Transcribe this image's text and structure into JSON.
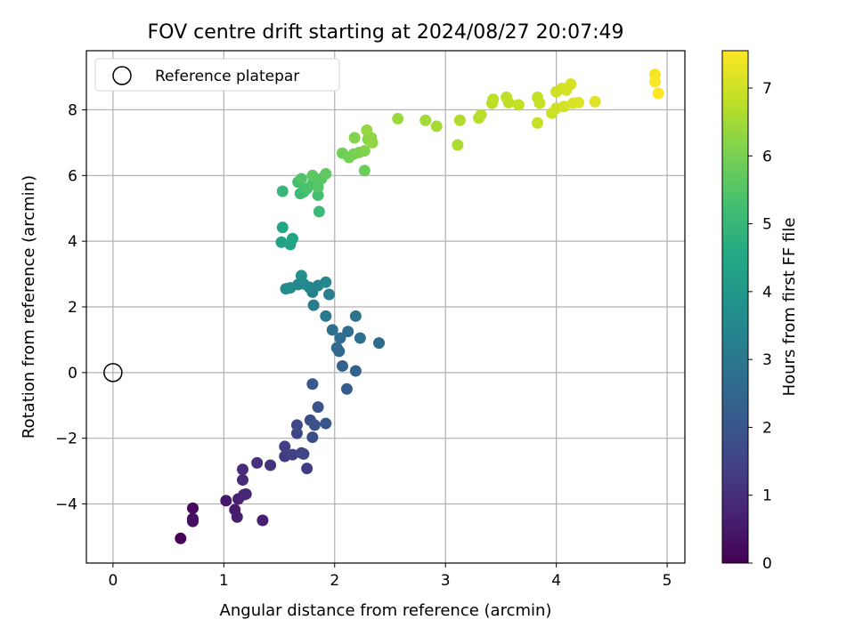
{
  "chart_data": {
    "type": "scatter",
    "title": "FOV centre drift starting at 2024/08/27 20:07:49",
    "xlabel": "Angular distance from reference (arcmin)",
    "ylabel": "Rotation from reference (arcmin)",
    "xlim": [
      -0.24,
      5.16
    ],
    "ylim": [
      -5.8,
      9.8
    ],
    "xticks": [
      0,
      1,
      2,
      3,
      4,
      5
    ],
    "yticks": [
      -4,
      -2,
      0,
      2,
      4,
      6,
      8
    ],
    "grid": true,
    "legend": {
      "position": "upper-left",
      "entries": [
        "Reference platepar"
      ]
    },
    "colorbar": {
      "label": "Hours from first FF file",
      "colormap": "viridis",
      "range": [
        0,
        7.55
      ],
      "ticks": [
        0,
        1,
        2,
        3,
        4,
        5,
        6,
        7
      ]
    },
    "reference_point": {
      "x": 0,
      "y": 0
    },
    "points": [
      {
        "x": 0.61,
        "y": -5.05,
        "h": 0.05
      },
      {
        "x": 0.72,
        "y": -4.13,
        "h": 0.2
      },
      {
        "x": 0.72,
        "y": -4.45,
        "h": 0.25
      },
      {
        "x": 0.72,
        "y": -4.53,
        "h": 0.3
      },
      {
        "x": 1.02,
        "y": -3.9,
        "h": 0.5
      },
      {
        "x": 1.1,
        "y": -4.18,
        "h": 0.55
      },
      {
        "x": 1.12,
        "y": -4.4,
        "h": 0.6
      },
      {
        "x": 1.13,
        "y": -3.85,
        "h": 0.7
      },
      {
        "x": 1.18,
        "y": -3.72,
        "h": 0.75
      },
      {
        "x": 1.2,
        "y": -3.7,
        "h": 0.8
      },
      {
        "x": 1.35,
        "y": -4.5,
        "h": 0.65
      },
      {
        "x": 1.17,
        "y": -3.27,
        "h": 0.9
      },
      {
        "x": 1.17,
        "y": -2.95,
        "h": 1.0
      },
      {
        "x": 1.3,
        "y": -2.75,
        "h": 1.05
      },
      {
        "x": 1.42,
        "y": -2.82,
        "h": 1.1
      },
      {
        "x": 1.55,
        "y": -2.55,
        "h": 1.3
      },
      {
        "x": 1.55,
        "y": -2.25,
        "h": 1.4
      },
      {
        "x": 1.62,
        "y": -2.5,
        "h": 1.45
      },
      {
        "x": 1.72,
        "y": -2.48,
        "h": 1.5
      },
      {
        "x": 1.7,
        "y": -2.45,
        "h": 1.55
      },
      {
        "x": 1.75,
        "y": -2.92,
        "h": 1.35
      },
      {
        "x": 1.66,
        "y": -1.85,
        "h": 1.6
      },
      {
        "x": 1.66,
        "y": -1.6,
        "h": 1.65
      },
      {
        "x": 1.78,
        "y": -1.45,
        "h": 1.75
      },
      {
        "x": 1.8,
        "y": -1.97,
        "h": 1.8
      },
      {
        "x": 1.82,
        "y": -1.6,
        "h": 1.85
      },
      {
        "x": 1.85,
        "y": -1.05,
        "h": 1.95
      },
      {
        "x": 1.92,
        "y": -1.55,
        "h": 2.0
      },
      {
        "x": 1.8,
        "y": -0.35,
        "h": 2.1
      },
      {
        "x": 2.11,
        "y": -0.5,
        "h": 2.25
      },
      {
        "x": 2.07,
        "y": 0.2,
        "h": 2.35
      },
      {
        "x": 2.19,
        "y": 0.05,
        "h": 2.4
      },
      {
        "x": 2.04,
        "y": 0.65,
        "h": 2.5
      },
      {
        "x": 2.02,
        "y": 0.75,
        "h": 2.55
      },
      {
        "x": 2.05,
        "y": 1.05,
        "h": 2.65
      },
      {
        "x": 2.12,
        "y": 1.25,
        "h": 2.7
      },
      {
        "x": 1.98,
        "y": 1.3,
        "h": 2.75
      },
      {
        "x": 2.23,
        "y": 1.05,
        "h": 2.8
      },
      {
        "x": 2.4,
        "y": 0.9,
        "h": 2.6
      },
      {
        "x": 2.19,
        "y": 1.72,
        "h": 2.9
      },
      {
        "x": 1.92,
        "y": 1.72,
        "h": 3.0
      },
      {
        "x": 1.81,
        "y": 2.05,
        "h": 3.1
      },
      {
        "x": 1.95,
        "y": 2.38,
        "h": 3.2
      },
      {
        "x": 1.8,
        "y": 2.45,
        "h": 3.3
      },
      {
        "x": 1.77,
        "y": 2.6,
        "h": 3.35
      },
      {
        "x": 1.85,
        "y": 2.65,
        "h": 3.4
      },
      {
        "x": 1.92,
        "y": 2.75,
        "h": 3.45
      },
      {
        "x": 1.67,
        "y": 2.68,
        "h": 3.5
      },
      {
        "x": 1.72,
        "y": 2.7,
        "h": 3.55
      },
      {
        "x": 1.6,
        "y": 2.58,
        "h": 3.6
      },
      {
        "x": 1.56,
        "y": 2.55,
        "h": 3.65
      },
      {
        "x": 1.7,
        "y": 2.95,
        "h": 3.7
      },
      {
        "x": 1.52,
        "y": 3.97,
        "h": 4.3
      },
      {
        "x": 1.6,
        "y": 3.9,
        "h": 4.35
      },
      {
        "x": 1.62,
        "y": 4.08,
        "h": 4.4
      },
      {
        "x": 1.53,
        "y": 4.42,
        "h": 4.5
      },
      {
        "x": 1.53,
        "y": 5.52,
        "h": 5.0
      },
      {
        "x": 1.86,
        "y": 4.9,
        "h": 5.1
      },
      {
        "x": 1.69,
        "y": 5.45,
        "h": 5.15
      },
      {
        "x": 1.72,
        "y": 5.5,
        "h": 5.2
      },
      {
        "x": 1.85,
        "y": 5.4,
        "h": 5.25
      },
      {
        "x": 1.67,
        "y": 5.8,
        "h": 5.3
      },
      {
        "x": 1.75,
        "y": 5.6,
        "h": 5.35
      },
      {
        "x": 1.8,
        "y": 5.75,
        "h": 5.4
      },
      {
        "x": 1.7,
        "y": 5.9,
        "h": 5.45
      },
      {
        "x": 1.85,
        "y": 5.65,
        "h": 5.5
      },
      {
        "x": 1.88,
        "y": 5.9,
        "h": 5.55
      },
      {
        "x": 1.8,
        "y": 6.0,
        "h": 5.6
      },
      {
        "x": 1.92,
        "y": 6.05,
        "h": 5.65
      },
      {
        "x": 2.27,
        "y": 6.15,
        "h": 5.85
      },
      {
        "x": 2.07,
        "y": 6.68,
        "h": 5.9
      },
      {
        "x": 2.13,
        "y": 6.55,
        "h": 5.95
      },
      {
        "x": 2.17,
        "y": 6.65,
        "h": 6.0
      },
      {
        "x": 2.22,
        "y": 6.7,
        "h": 6.05
      },
      {
        "x": 2.27,
        "y": 6.75,
        "h": 6.1
      },
      {
        "x": 2.18,
        "y": 7.15,
        "h": 6.15
      },
      {
        "x": 2.3,
        "y": 7.1,
        "h": 6.2
      },
      {
        "x": 2.33,
        "y": 7.15,
        "h": 6.25
      },
      {
        "x": 2.34,
        "y": 7.0,
        "h": 6.3
      },
      {
        "x": 2.29,
        "y": 7.38,
        "h": 6.35
      },
      {
        "x": 2.57,
        "y": 7.73,
        "h": 6.4
      },
      {
        "x": 2.82,
        "y": 7.68,
        "h": 6.5
      },
      {
        "x": 2.92,
        "y": 7.5,
        "h": 6.55
      },
      {
        "x": 3.11,
        "y": 6.93,
        "h": 6.6
      },
      {
        "x": 3.13,
        "y": 7.68,
        "h": 6.65
      },
      {
        "x": 3.3,
        "y": 7.75,
        "h": 6.7
      },
      {
        "x": 3.32,
        "y": 7.85,
        "h": 6.72
      },
      {
        "x": 3.42,
        "y": 8.2,
        "h": 6.75
      },
      {
        "x": 3.43,
        "y": 8.32,
        "h": 6.78
      },
      {
        "x": 3.55,
        "y": 8.38,
        "h": 6.8
      },
      {
        "x": 3.57,
        "y": 8.22,
        "h": 6.82
      },
      {
        "x": 3.66,
        "y": 8.15,
        "h": 6.85
      },
      {
        "x": 3.83,
        "y": 8.38,
        "h": 6.88
      },
      {
        "x": 3.83,
        "y": 7.6,
        "h": 6.9
      },
      {
        "x": 3.85,
        "y": 8.2,
        "h": 6.92
      },
      {
        "x": 3.96,
        "y": 7.9,
        "h": 6.95
      },
      {
        "x": 4.0,
        "y": 8.05,
        "h": 6.97
      },
      {
        "x": 4.0,
        "y": 8.55,
        "h": 7.0
      },
      {
        "x": 4.05,
        "y": 8.65,
        "h": 7.02
      },
      {
        "x": 4.07,
        "y": 8.1,
        "h": 7.05
      },
      {
        "x": 4.09,
        "y": 8.6,
        "h": 7.07
      },
      {
        "x": 4.13,
        "y": 8.78,
        "h": 7.1
      },
      {
        "x": 4.15,
        "y": 8.2,
        "h": 7.12
      },
      {
        "x": 4.2,
        "y": 8.22,
        "h": 7.15
      },
      {
        "x": 4.35,
        "y": 8.25,
        "h": 7.2
      },
      {
        "x": 4.89,
        "y": 9.08,
        "h": 7.45
      },
      {
        "x": 4.89,
        "y": 8.85,
        "h": 7.5
      },
      {
        "x": 4.92,
        "y": 8.5,
        "h": 7.55
      }
    ]
  }
}
